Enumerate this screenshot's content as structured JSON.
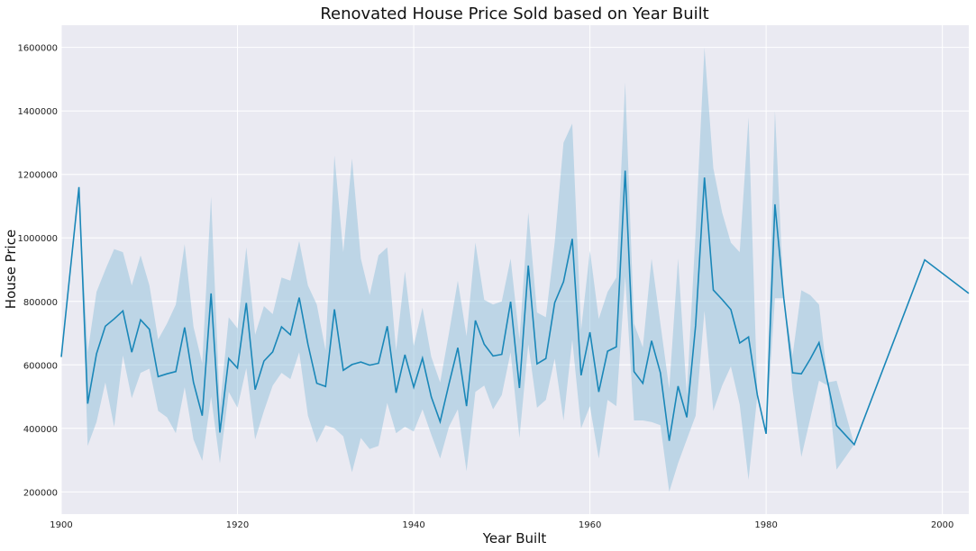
{
  "chart_data": {
    "type": "line",
    "title": "Renovated House Price Sold based on Year Built",
    "xlabel": "Year Built",
    "ylabel": "House Price",
    "xlim": [
      1900,
      2003
    ],
    "ylim": [
      130000,
      1670000
    ],
    "x_ticks": [
      1900,
      1920,
      1940,
      1960,
      1980,
      2000
    ],
    "y_ticks": [
      200000,
      400000,
      600000,
      800000,
      1000000,
      1200000,
      1400000,
      1600000
    ],
    "grid": true,
    "line_color": "#1a87b8",
    "band_color": "#7fb8d6",
    "background_color": "#eaeaf2",
    "series": [
      {
        "x": [
          1900,
          1902,
          1903,
          1904,
          1905,
          1906,
          1907,
          1908,
          1909,
          1910,
          1911,
          1912,
          1913,
          1914,
          1915,
          1916,
          1917,
          1918,
          1919,
          1920,
          1921,
          1922,
          1923,
          1924,
          1925,
          1926,
          1927,
          1928,
          1929,
          1930,
          1931,
          1932,
          1933,
          1934,
          1935,
          1936,
          1937,
          1938,
          1939,
          1940,
          1941,
          1942,
          1943,
          1944,
          1945,
          1946,
          1947,
          1948,
          1949,
          1950,
          1951,
          1952,
          1953,
          1954,
          1955,
          1956,
          1957,
          1958,
          1959,
          1960,
          1961,
          1962,
          1963,
          1964,
          1965,
          1966,
          1967,
          1968,
          1969,
          1970,
          1971,
          1972,
          1973,
          1974,
          1975,
          1976,
          1977,
          1978,
          1979,
          1980,
          1981,
          1982,
          1983,
          1984,
          1985,
          1986,
          1987,
          1988,
          1990,
          1998,
          2003
        ],
        "y": [
          625000,
          1160000,
          478000,
          635000,
          722000,
          745000,
          770000,
          640000,
          742000,
          712000,
          563000,
          572000,
          579000,
          718000,
          545000,
          440000,
          825000,
          387000,
          620000,
          590000,
          795000,
          522000,
          612000,
          641000,
          720000,
          695000,
          812000,
          665000,
          542000,
          532000,
          775000,
          583000,
          601000,
          609000,
          599000,
          605000,
          722000,
          512000,
          632000,
          530000,
          621000,
          499000,
          421000,
          540000,
          654000,
          470000,
          740000,
          665000,
          628000,
          633000,
          799000,
          527000,
          913000,
          603000,
          620000,
          796000,
          862000,
          997000,
          567000,
          703000,
          515000,
          643000,
          657000,
          1212000,
          579000,
          542000,
          676000,
          575000,
          361000,
          533000,
          435000,
          725000,
          1190000,
          836000,
          806000,
          774000,
          669000,
          688000,
          505000,
          383000,
          1106000,
          810000,
          575000,
          572000,
          618000,
          670000,
          543000,
          409000,
          349000,
          931000,
          825000
        ],
        "lower": [
          625000,
          1160000,
          345000,
          420000,
          545000,
          405000,
          630000,
          495000,
          575000,
          588000,
          455000,
          435000,
          385000,
          530000,
          365000,
          298000,
          500000,
          290000,
          515000,
          465000,
          590000,
          365000,
          455000,
          535000,
          575000,
          555000,
          640000,
          440000,
          355000,
          410000,
          400000,
          375000,
          262000,
          370000,
          335000,
          345000,
          480000,
          385000,
          405000,
          390000,
          460000,
          380000,
          305000,
          405000,
          460000,
          265000,
          515000,
          535000,
          460000,
          505000,
          640000,
          370000,
          665000,
          465000,
          490000,
          620000,
          425000,
          680000,
          400000,
          470000,
          305000,
          490000,
          470000,
          880000,
          425000,
          425000,
          420000,
          410000,
          200000,
          290000,
          365000,
          440000,
          770000,
          455000,
          535000,
          595000,
          475000,
          238000,
          505000,
          383000,
          810000,
          810000,
          520000,
          310000,
          430000,
          550000,
          535000,
          270000,
          349000,
          931000,
          825000
        ],
        "upper": [
          625000,
          1160000,
          640000,
          830000,
          900000,
          965000,
          955000,
          850000,
          945000,
          850000,
          680000,
          730000,
          790000,
          980000,
          720000,
          605000,
          1130000,
          465000,
          750000,
          715000,
          970000,
          695000,
          785000,
          760000,
          875000,
          865000,
          990000,
          850000,
          790000,
          645000,
          1260000,
          955000,
          1250000,
          935000,
          820000,
          945000,
          970000,
          645000,
          895000,
          660000,
          780000,
          625000,
          545000,
          700000,
          865000,
          690000,
          985000,
          805000,
          790000,
          800000,
          935000,
          680000,
          1080000,
          765000,
          750000,
          985000,
          1300000,
          1360000,
          710000,
          960000,
          745000,
          830000,
          875000,
          1490000,
          730000,
          655000,
          935000,
          730000,
          525000,
          935000,
          505000,
          1020000,
          1600000,
          1220000,
          1080000,
          985000,
          955000,
          1380000,
          505000,
          383000,
          1400000,
          810000,
          630000,
          835000,
          820000,
          790000,
          545000,
          550000,
          349000,
          931000,
          825000
        ]
      }
    ]
  }
}
